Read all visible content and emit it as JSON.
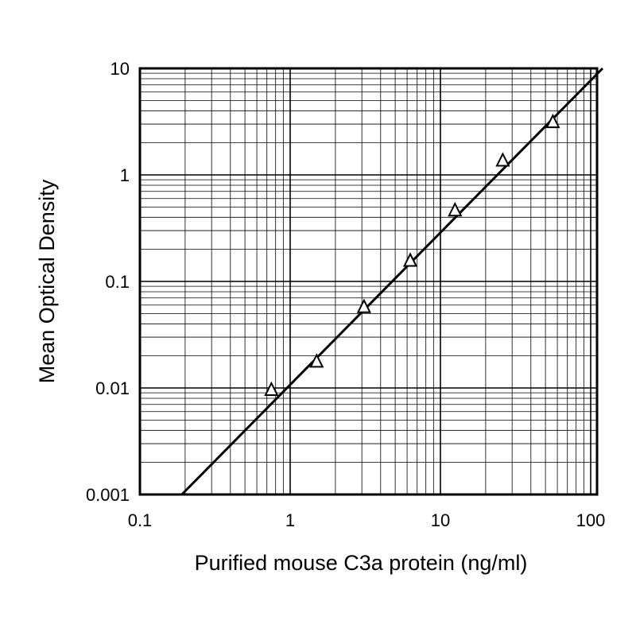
{
  "chart_data": {
    "type": "scatter",
    "title": "",
    "xlabel": "Purified mouse C3a protein (ng/ml)",
    "ylabel": "Mean Optical Density",
    "x_scale": "log",
    "y_scale": "log",
    "xlim": [
      0.1,
      120
    ],
    "ylim": [
      0.001,
      10
    ],
    "grid": true,
    "legend": "none",
    "x_ticks": [
      {
        "value": 0.1,
        "label": "0.1"
      },
      {
        "value": 1,
        "label": "1"
      },
      {
        "value": 10,
        "label": "10"
      },
      {
        "value": 100,
        "label": "100"
      }
    ],
    "y_ticks": [
      {
        "value": 0.001,
        "label": "0.001"
      },
      {
        "value": 0.01,
        "label": "0.01"
      },
      {
        "value": 0.1,
        "label": "0.1"
      },
      {
        "value": 1,
        "label": "1"
      },
      {
        "value": 10,
        "label": "10"
      }
    ],
    "series": [
      {
        "marker": "triangle-open",
        "x": [
          0.75,
          1.5,
          3.1,
          6.3,
          12.5,
          26,
          56
        ],
        "y": [
          0.0095,
          0.0175,
          0.057,
          0.155,
          0.46,
          1.35,
          3.1
        ]
      }
    ],
    "fit_line": {
      "style": "solid",
      "x": [
        0.19,
        120
      ],
      "y": [
        0.001,
        10
      ]
    },
    "colors": {
      "line": "#000000",
      "grid": "#000000",
      "background": "#ffffff"
    }
  }
}
